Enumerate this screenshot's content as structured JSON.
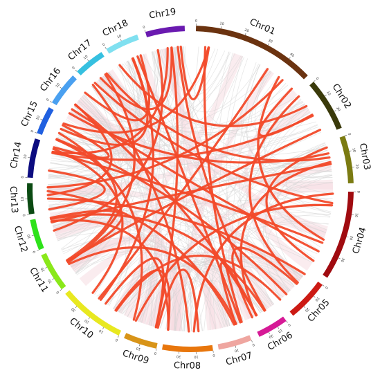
{
  "diagram": {
    "type": "circos-synteny",
    "chromosomes": [
      {
        "name": "Chr01",
        "color": "#6b3310",
        "ticks": [
          "0",
          "10",
          "20",
          "30",
          "40"
        ]
      },
      {
        "name": "Chr02",
        "color": "#3a3a0a",
        "ticks": [
          "0",
          "10",
          "20"
        ]
      },
      {
        "name": "Chr03",
        "color": "#7b7b12",
        "ticks": [
          "0",
          "10",
          "20"
        ]
      },
      {
        "name": "Chr04",
        "color": "#a00b10",
        "ticks": [
          "0",
          "10",
          "20",
          "30"
        ]
      },
      {
        "name": "Chr05",
        "color": "#cc1a14",
        "ticks": [
          "0",
          "10",
          "20"
        ]
      },
      {
        "name": "Chr06",
        "color": "#d61a96",
        "ticks": [
          "0",
          "10",
          "20"
        ]
      },
      {
        "name": "Chr07",
        "color": "#efa6a0",
        "ticks": [
          "0",
          "10"
        ]
      },
      {
        "name": "Chr08",
        "color": "#e8760c",
        "ticks": [
          "0",
          "10",
          "20"
        ]
      },
      {
        "name": "Chr09",
        "color": "#d89418",
        "ticks": [
          "0",
          "10"
        ]
      },
      {
        "name": "Chr10",
        "color": "#e8e820",
        "ticks": [
          "0",
          "10",
          "20",
          "30"
        ]
      },
      {
        "name": "Chr11",
        "color": "#8ae81a",
        "ticks": [
          "0",
          "10",
          "20"
        ]
      },
      {
        "name": "Chr12",
        "color": "#2ee21a",
        "ticks": [
          "0",
          "10"
        ]
      },
      {
        "name": "Chr13",
        "color": "#0b4a12",
        "ticks": [
          "0",
          "10"
        ]
      },
      {
        "name": "Chr14",
        "color": "#0c0c80",
        "ticks": [
          "0",
          "10"
        ]
      },
      {
        "name": "Chr15",
        "color": "#2060e0",
        "ticks": [
          "0",
          "10"
        ]
      },
      {
        "name": "Chr16",
        "color": "#4aa0f0",
        "ticks": [
          "0",
          "10"
        ]
      },
      {
        "name": "Chr17",
        "color": "#36c0e0",
        "ticks": [
          "0",
          "10"
        ]
      },
      {
        "name": "Chr18",
        "color": "#80e0f0",
        "ticks": [
          "0",
          "10"
        ]
      },
      {
        "name": "Chr19",
        "color": "#6a1ab0",
        "ticks": [
          "0"
        ]
      }
    ],
    "link_colors": {
      "highlight": "#f24a2a",
      "background": "#d4d4d4",
      "band": "#f5dde2"
    }
  }
}
